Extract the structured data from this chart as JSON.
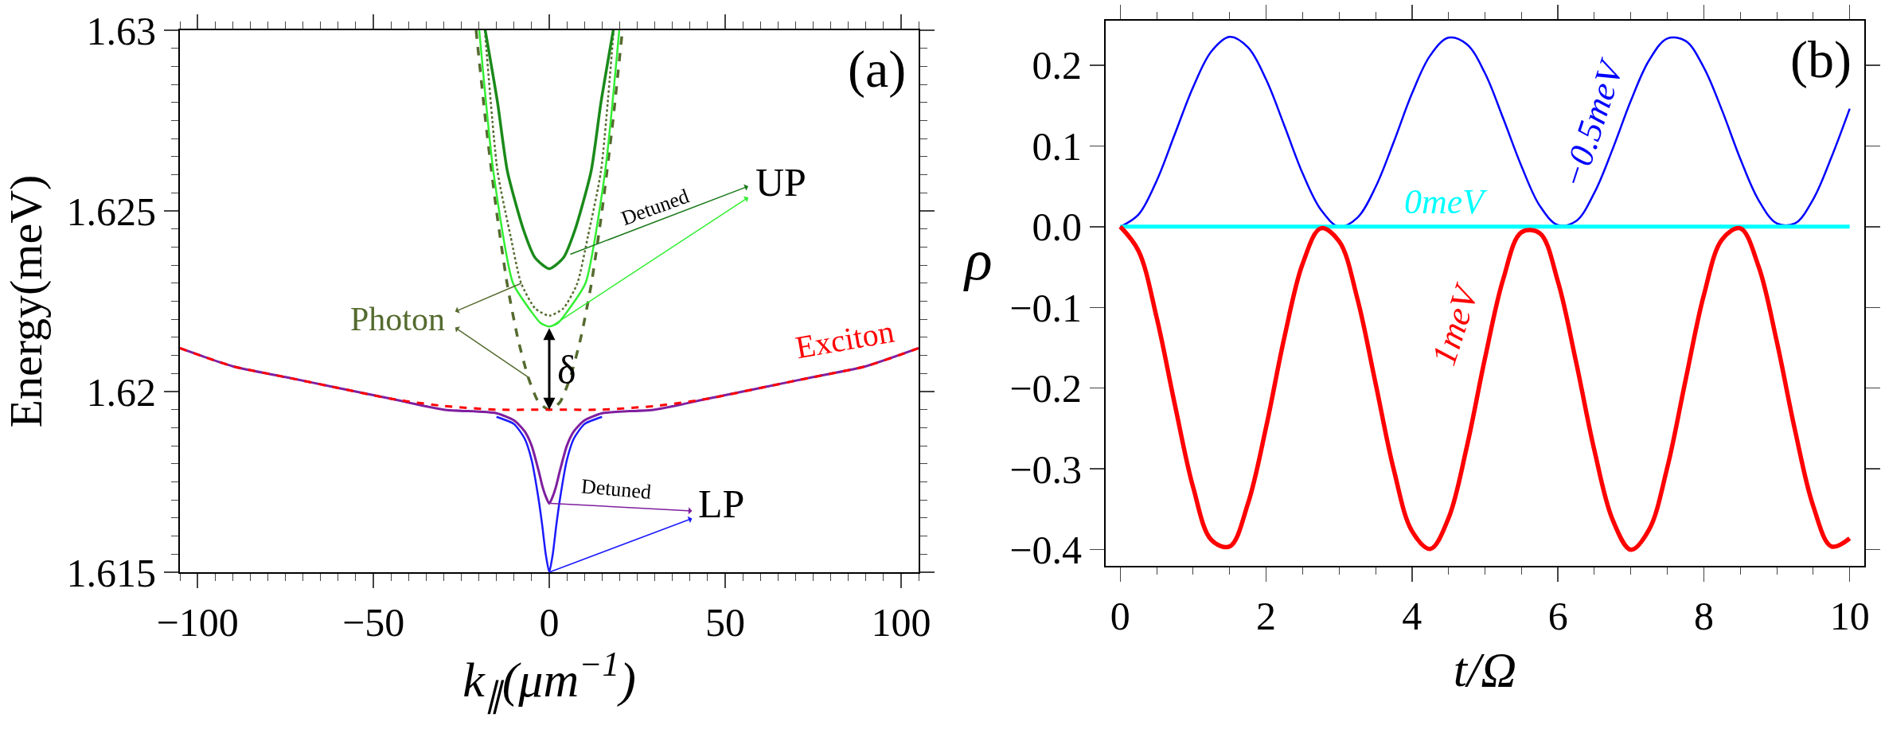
{
  "chart_data": [
    {
      "type": "line",
      "xlabel": "k$_{∥}$(μm$^{−1}$)",
      "ylabel": "Energy(meV)",
      "xlim": [
        -105,
        105
      ],
      "ylim": [
        1.615,
        1.63
      ],
      "xticks": [
        {
          "value": -100,
          "label": "−100"
        },
        {
          "value": -50,
          "label": "−50"
        },
        0,
        50,
        100
      ],
      "yticks": [
        1.615,
        1.62,
        1.625,
        1.63
      ],
      "grid": false,
      "marker": "none",
      "series": [
        {
          "color": "#556b2f",
          "line_style": "dashed",
          "x": [
            -20.8,
            -18,
            -15,
            -12,
            -9,
            -6,
            -3,
            0,
            3,
            6,
            9,
            12,
            15,
            18,
            20.8
          ],
          "values": [
            1.63,
            1.6274,
            1.625,
            1.623,
            1.6215,
            1.6204,
            1.6197,
            1.6195,
            1.6197,
            1.6204,
            1.6215,
            1.623,
            1.625,
            1.6274,
            1.63
          ]
        },
        {
          "color": "#556b2f",
          "line_style": "dotted",
          "x": [
            -18.3,
            -14.7,
            -11,
            -8,
            -4,
            0,
            4,
            8,
            11,
            14.7,
            18.3
          ],
          "values": [
            1.63,
            1.6261,
            1.6243,
            1.623,
            1.6223,
            1.6221,
            1.6223,
            1.623,
            1.6243,
            1.6261,
            1.63
          ]
        },
        {
          "color": "#1a8a1a",
          "line_style": "solid",
          "x": [
            -18.2,
            -14.7,
            -11.9,
            -7.4,
            -4,
            0,
            4,
            7.4,
            11.9,
            14.7,
            18.2
          ],
          "values": [
            1.63,
            1.628,
            1.6261,
            1.6245,
            1.6237,
            1.6234,
            1.6237,
            1.6245,
            1.6261,
            1.628,
            1.63
          ]
        },
        {
          "color": "#33ee33",
          "line_style": "solid",
          "x": [
            -19.9,
            -15.9,
            -10.3,
            -5,
            -2.5,
            0,
            2.5,
            5,
            10.3,
            15.9,
            19.9
          ],
          "values": [
            1.63,
            1.6261,
            1.623,
            1.6222,
            1.6219,
            1.6218,
            1.6219,
            1.6222,
            1.623,
            1.6261,
            1.63
          ]
        },
        {
          "color": "#1a1aff",
          "line_style": "solid",
          "x": [
            -15,
            -10,
            -7,
            -5,
            -3,
            -2,
            -1,
            0,
            1,
            2,
            3,
            5,
            7,
            10,
            15
          ],
          "values": [
            1.6193,
            1.6191,
            1.6187,
            1.6181,
            1.617,
            1.6163,
            1.6155,
            1.615,
            1.6155,
            1.6163,
            1.617,
            1.6181,
            1.6187,
            1.6191,
            1.6193
          ]
        },
        {
          "color": "#7f1f9f",
          "line_style": "solid",
          "x": [
            -105,
            -90,
            -75,
            -60,
            -45,
            -30,
            -15,
            -10,
            -7,
            -5,
            -3,
            -2,
            -1,
            0,
            1,
            2,
            3,
            5,
            7,
            10,
            15,
            30,
            45,
            60,
            75,
            90,
            105
          ],
          "values": [
            1.6212,
            1.6207,
            1.6204,
            1.6201,
            1.6198,
            1.6195,
            1.6194,
            1.6192,
            1.6189,
            1.6185,
            1.6178,
            1.6174,
            1.6171,
            1.6169,
            1.6171,
            1.6174,
            1.6178,
            1.6185,
            1.6189,
            1.6192,
            1.6194,
            1.6195,
            1.6198,
            1.6201,
            1.6204,
            1.6207,
            1.6212
          ]
        },
        {
          "color": "#ff0000",
          "line_style": "dashed",
          "x": [
            -105,
            -90,
            -75,
            -60,
            -45,
            -30,
            -15,
            0,
            15,
            30,
            45,
            60,
            75,
            90,
            105
          ],
          "values": [
            1.6212,
            1.6207,
            1.6204,
            1.6201,
            1.6198,
            1.6196,
            1.6195,
            1.6195,
            1.6195,
            1.6196,
            1.6198,
            1.6201,
            1.6204,
            1.6207,
            1.6212
          ]
        }
      ],
      "annotations": [
        "(a)",
        {
          "text": "UP",
          "x": 6,
          "y": 1.6238
        },
        "Detuned",
        {
          "text": "Photon",
          "x": -6,
          "y": 1.6204
        },
        "Exciton",
        {
          "text": "δ",
          "x": 0,
          "y": 1.6195
        },
        {
          "text": "LP",
          "x": 0,
          "y": 1.615
        },
        "Detuned"
      ]
    },
    {
      "type": "line",
      "xlabel": "t/Ω",
      "ylabel": "ρ",
      "xlim": [
        -0.2,
        10.2
      ],
      "ylim": [
        -0.42,
        0.255
      ],
      "xticks": [
        0,
        2,
        4,
        6,
        8,
        10
      ],
      "yticks": [
        {
          "value": -0.4,
          "label": "−0.4"
        },
        {
          "value": -0.3,
          "label": "−0.3"
        },
        {
          "value": -0.2,
          "label": "−0.2"
        },
        {
          "value": -0.1,
          "label": "−0.1"
        },
        {
          "value": 0,
          "label": "0.0"
        },
        0.1,
        0.2
      ],
      "grid": false,
      "marker": "none",
      "x": [
        0,
        0.25,
        0.5,
        0.75,
        1,
        1.25,
        1.5,
        1.75,
        2,
        2.25,
        2.5,
        2.75,
        3,
        3.25,
        3.5,
        3.75,
        4,
        4.25,
        4.5,
        4.75,
        5,
        5.25,
        5.5,
        5.75,
        6,
        6.25,
        6.5,
        6.75,
        7,
        7.25,
        7.5,
        7.75,
        8,
        8.25,
        8.5,
        8.75,
        9,
        9.25,
        9.5,
        9.75,
        10
      ],
      "series": [
        {
          "color": "#0000ff",
          "line_style": "solid",
          "values": [
            0,
            0.015,
            0.057,
            0.115,
            0.173,
            0.217,
            0.235,
            0.222,
            0.182,
            0.125,
            0.066,
            0.021,
            0,
            0.011,
            0.049,
            0.105,
            0.165,
            0.212,
            0.234,
            0.226,
            0.19,
            0.134,
            0.075,
            0.026,
            0.002,
            0.007,
            0.042,
            0.096,
            0.156,
            0.206,
            0.233,
            0.23,
            0.197,
            0.144,
            0.084,
            0.033,
            0.004,
            0.004,
            0.034,
            0.086,
            0.146
          ]
        },
        {
          "color": "#00ffff",
          "line_style": "solid",
          "x": [
            0,
            10
          ],
          "values": [
            0,
            0
          ]
        },
        {
          "color": "#ff0000",
          "line_style": "solid",
          "values": [
            0,
            -0.03,
            -0.113,
            -0.221,
            -0.323,
            -0.388,
            -0.396,
            -0.343,
            -0.248,
            -0.137,
            -0.046,
            -0.002,
            -0.018,
            -0.089,
            -0.194,
            -0.301,
            -0.377,
            -0.399,
            -0.361,
            -0.273,
            -0.163,
            -0.065,
            -0.007,
            -0.008,
            -0.068,
            -0.168,
            -0.277,
            -0.363,
            -0.4,
            -0.375,
            -0.298,
            -0.19,
            -0.085,
            -0.016,
            -0.002,
            -0.049,
            -0.142,
            -0.252,
            -0.346,
            -0.396,
            -0.386
          ]
        }
      ],
      "annotations": [
        "(b)",
        "−0.5meV",
        "0meV",
        "1meV"
      ]
    }
  ]
}
